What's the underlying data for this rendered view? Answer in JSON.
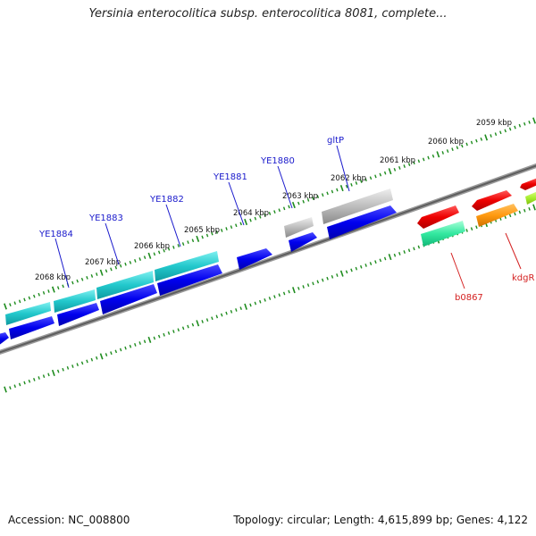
{
  "title": "Yersinia enterocolitica subsp. enterocolitica 8081, complete...",
  "footer": {
    "accession": "Accession: NC_008800",
    "summary": "Topology: circular; Length: 4,615,899 bp; Genes: 4,122"
  },
  "colors": {
    "backbone": "#7a7a7a",
    "tick": "#1e8c1e",
    "label_forward": "#1a1acc",
    "label_reverse": "#d42020"
  },
  "ruler_labels": [
    "2068 kbp",
    "2067 kbp",
    "2066 kbp",
    "2065 kbp",
    "2064 kbp",
    "2063 kbp",
    "2062 kbp",
    "2061 kbp",
    "2060 kbp",
    "2059 kbp"
  ],
  "genes": [
    {
      "label": "YE1884",
      "color": "cyan",
      "strand": "top"
    },
    {
      "label": "YE1883",
      "color": "cyan",
      "strand": "top"
    },
    {
      "label": "YE1882",
      "color": "cyan",
      "strand": "top"
    },
    {
      "label": "YE1881",
      "color": "blue",
      "strand": "top"
    },
    {
      "label": "YE1880",
      "color": "gray",
      "strand": "top"
    },
    {
      "label": "gltP",
      "color": "gray",
      "strand": "top"
    },
    {
      "label": "b0867",
      "color": "green",
      "strand": "bottom"
    },
    {
      "label": "kdgR",
      "color": "orange",
      "strand": "bottom"
    }
  ]
}
